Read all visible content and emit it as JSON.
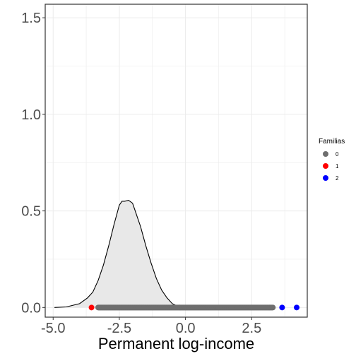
{
  "chart_data": {
    "type": "area",
    "xlabel": "Permanent log-income",
    "ylabel": "",
    "xlim": [
      -5.3,
      4.6
    ],
    "ylim": [
      -0.05,
      1.57
    ],
    "x_ticks": [
      -5.0,
      -2.5,
      0.0,
      2.5
    ],
    "x_tick_labels": [
      "-5.0",
      "-2.5",
      "0.0",
      "2.5"
    ],
    "y_ticks": [
      0.0,
      0.5,
      1.0,
      1.5
    ],
    "y_tick_labels": [
      "0.0",
      "0.5",
      "1.0",
      "1.5"
    ],
    "grid": true,
    "density": {
      "x": [
        -4.95,
        -4.5,
        -4.0,
        -3.7,
        -3.5,
        -3.3,
        -3.1,
        -2.9,
        -2.7,
        -2.5,
        -2.4,
        -2.3,
        -2.15,
        -2.0,
        -1.9,
        -1.8,
        -1.7,
        -1.5,
        -1.3,
        -1.1,
        -0.9,
        -0.7,
        -0.5,
        -0.3,
        0.0,
        0.5
      ],
      "y": [
        0.0,
        0.003,
        0.02,
        0.05,
        0.08,
        0.14,
        0.22,
        0.32,
        0.43,
        0.53,
        0.55,
        0.55,
        0.555,
        0.54,
        0.5,
        0.46,
        0.42,
        0.32,
        0.23,
        0.15,
        0.09,
        0.05,
        0.02,
        0.007,
        0.001,
        0.0
      ],
      "fill": "#e8e8e8",
      "stroke": "#000000"
    },
    "rug": {
      "series": [
        {
          "name": "0",
          "color": "#6e6e6e",
          "x_from": -3.3,
          "x_to": 3.3,
          "y": 0.0
        },
        {
          "name": "1",
          "color": "#ff0000",
          "x": [
            -3.55
          ],
          "y": 0.0
        },
        {
          "name": "2",
          "color": "#0000ff",
          "x": [
            3.65,
            4.2
          ],
          "y": 0.0
        }
      ]
    },
    "legend": {
      "title": "Familias",
      "placement": "right",
      "entries": [
        {
          "label": "0",
          "color": "#6e6e6e"
        },
        {
          "label": "1",
          "color": "#ff0000"
        },
        {
          "label": "2",
          "color": "#0000ff"
        }
      ]
    }
  }
}
